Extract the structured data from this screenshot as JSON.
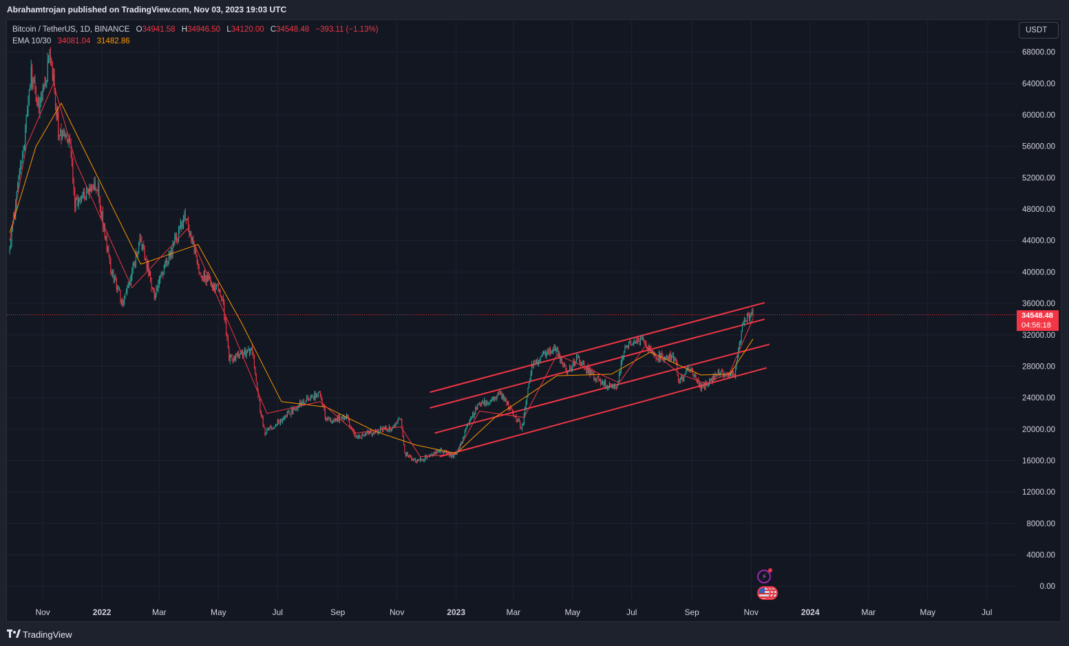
{
  "header": {
    "published_line": "Abrahamtrojan published on TradingView.com, Nov 03, 2023 19:03 UTC"
  },
  "legend": {
    "symbol": "Bitcoin / TetherUS, 1D, BINANCE",
    "open_label": "O",
    "open": "34941.58",
    "high_label": "H",
    "high": "34946.50",
    "low_label": "L",
    "low": "34120.00",
    "close_label": "C",
    "close": "34548.48",
    "change": "−393.11 (−1.13%)",
    "ema_label": "EMA 10/30",
    "ema_fast": "34081.04",
    "ema_slow": "31482.86"
  },
  "currency_button": "USDT",
  "last_price": {
    "price": "34548.48",
    "countdown": "04:56:18"
  },
  "footer": {
    "brand": "TradingView"
  },
  "colors": {
    "background": "#131722",
    "up": "#26a69a",
    "down": "#f23645",
    "ema_fast": "#f23645",
    "ema_slow": "#ff9800",
    "channel": "#f23645",
    "grid": "#1f2330"
  },
  "chart_data": {
    "type": "candlestick",
    "title": "Bitcoin / TetherUS, 1D, BINANCE",
    "x_axis": {
      "type": "date",
      "range": [
        "2021-09-25",
        "2024-07-31"
      ],
      "tick_labels": [
        "Nov",
        "2022",
        "Mar",
        "May",
        "Jul",
        "Sep",
        "Nov",
        "2023",
        "Mar",
        "May",
        "Jul",
        "Sep",
        "Nov",
        "2024",
        "Mar",
        "May",
        "Jul"
      ],
      "tick_dates": [
        "2021-11-01",
        "2022-01-01",
        "2022-03-01",
        "2022-05-01",
        "2022-07-01",
        "2022-09-01",
        "2022-11-01",
        "2023-01-01",
        "2023-03-01",
        "2023-05-01",
        "2023-07-01",
        "2023-09-01",
        "2023-11-01",
        "2024-01-01",
        "2024-03-01",
        "2024-05-01",
        "2024-07-01"
      ]
    },
    "y_axis": {
      "range": [
        -2000,
        72000
      ],
      "ticks": [
        "0.00",
        "4000.00",
        "8000.00",
        "12000.00",
        "16000.00",
        "20000.00",
        "24000.00",
        "28000.00",
        "32000.00",
        "36000.00",
        "40000.00",
        "44000.00",
        "48000.00",
        "52000.00",
        "56000.00",
        "60000.00",
        "64000.00",
        "68000.00"
      ],
      "tick_values": [
        0,
        4000,
        8000,
        12000,
        16000,
        20000,
        24000,
        28000,
        32000,
        36000,
        40000,
        44000,
        48000,
        52000,
        56000,
        60000,
        64000,
        68000
      ]
    },
    "grid": true,
    "price_path": [
      {
        "date": "2021-09-28",
        "close": 42500
      },
      {
        "date": "2021-10-06",
        "close": 51000
      },
      {
        "date": "2021-10-12",
        "close": 56000
      },
      {
        "date": "2021-10-20",
        "close": 65000
      },
      {
        "date": "2021-10-28",
        "close": 61000
      },
      {
        "date": "2021-11-09",
        "close": 67500
      },
      {
        "date": "2021-11-18",
        "close": 57000
      },
      {
        "date": "2021-11-28",
        "close": 57500
      },
      {
        "date": "2021-12-04",
        "close": 49000
      },
      {
        "date": "2021-12-27",
        "close": 51000
      },
      {
        "date": "2022-01-08",
        "close": 41500
      },
      {
        "date": "2022-01-22",
        "close": 36000
      },
      {
        "date": "2022-02-10",
        "close": 44000
      },
      {
        "date": "2022-02-24",
        "close": 37000
      },
      {
        "date": "2022-03-28",
        "close": 47500
      },
      {
        "date": "2022-04-12",
        "close": 40000
      },
      {
        "date": "2022-05-05",
        "close": 37000
      },
      {
        "date": "2022-05-12",
        "close": 29000
      },
      {
        "date": "2022-06-05",
        "close": 30000
      },
      {
        "date": "2022-06-13",
        "close": 22500
      },
      {
        "date": "2022-06-18",
        "close": 19500
      },
      {
        "date": "2022-07-08",
        "close": 21500
      },
      {
        "date": "2022-07-30",
        "close": 23800
      },
      {
        "date": "2022-08-14",
        "close": 24400
      },
      {
        "date": "2022-08-20",
        "close": 21200
      },
      {
        "date": "2022-09-10",
        "close": 21500
      },
      {
        "date": "2022-09-20",
        "close": 19000
      },
      {
        "date": "2022-10-25",
        "close": 20200
      },
      {
        "date": "2022-11-05",
        "close": 21200
      },
      {
        "date": "2022-11-09",
        "close": 17000
      },
      {
        "date": "2022-11-21",
        "close": 15800
      },
      {
        "date": "2022-12-15",
        "close": 17300
      },
      {
        "date": "2022-12-31",
        "close": 16550
      },
      {
        "date": "2023-01-14",
        "close": 20800
      },
      {
        "date": "2023-01-22",
        "close": 22700
      },
      {
        "date": "2023-02-16",
        "close": 24500
      },
      {
        "date": "2023-03-10",
        "close": 20100
      },
      {
        "date": "2023-03-20",
        "close": 28200
      },
      {
        "date": "2023-04-13",
        "close": 30400
      },
      {
        "date": "2023-04-25",
        "close": 27500
      },
      {
        "date": "2023-05-06",
        "close": 29000
      },
      {
        "date": "2023-05-25",
        "close": 26400
      },
      {
        "date": "2023-06-15",
        "close": 25000
      },
      {
        "date": "2023-06-24",
        "close": 30600
      },
      {
        "date": "2023-07-13",
        "close": 31300
      },
      {
        "date": "2023-07-25",
        "close": 29200
      },
      {
        "date": "2023-08-15",
        "close": 29100
      },
      {
        "date": "2023-08-18",
        "close": 26100
      },
      {
        "date": "2023-08-29",
        "close": 27700
      },
      {
        "date": "2023-09-11",
        "close": 25200
      },
      {
        "date": "2023-09-28",
        "close": 27000
      },
      {
        "date": "2023-10-15",
        "close": 27100
      },
      {
        "date": "2023-10-23",
        "close": 33000
      },
      {
        "date": "2023-10-26",
        "close": 34200
      },
      {
        "date": "2023-11-03",
        "close": 34548
      }
    ],
    "ema_fast_series": {
      "label": "EMA 10/30",
      "points": [
        {
          "date": "2021-09-28",
          "value": 44000
        },
        {
          "date": "2021-10-15",
          "value": 56000
        },
        {
          "date": "2021-11-12",
          "value": 64000
        },
        {
          "date": "2021-12-05",
          "value": 54000
        },
        {
          "date": "2022-01-10",
          "value": 44000
        },
        {
          "date": "2022-02-01",
          "value": 38000
        },
        {
          "date": "2022-03-30",
          "value": 45500
        },
        {
          "date": "2022-05-10",
          "value": 34000
        },
        {
          "date": "2022-06-20",
          "value": 22000
        },
        {
          "date": "2022-08-14",
          "value": 23500
        },
        {
          "date": "2022-09-20",
          "value": 19500
        },
        {
          "date": "2022-11-05",
          "value": 20300
        },
        {
          "date": "2022-11-25",
          "value": 16500
        },
        {
          "date": "2023-01-01",
          "value": 16800
        },
        {
          "date": "2023-01-25",
          "value": 22300
        },
        {
          "date": "2023-03-12",
          "value": 21500
        },
        {
          "date": "2023-04-15",
          "value": 29500
        },
        {
          "date": "2023-06-18",
          "value": 25900
        },
        {
          "date": "2023-07-15",
          "value": 30600
        },
        {
          "date": "2023-08-20",
          "value": 27000
        },
        {
          "date": "2023-09-15",
          "value": 25800
        },
        {
          "date": "2023-10-10",
          "value": 27200
        },
        {
          "date": "2023-11-03",
          "value": 34081
        }
      ]
    },
    "ema_slow_series": {
      "label": "EMA 10/30",
      "points": [
        {
          "date": "2021-09-28",
          "value": 45000
        },
        {
          "date": "2021-10-25",
          "value": 56000
        },
        {
          "date": "2021-11-20",
          "value": 61500
        },
        {
          "date": "2022-01-01",
          "value": 51000
        },
        {
          "date": "2022-02-10",
          "value": 41000
        },
        {
          "date": "2022-04-10",
          "value": 43500
        },
        {
          "date": "2022-05-25",
          "value": 33500
        },
        {
          "date": "2022-07-05",
          "value": 23500
        },
        {
          "date": "2022-08-20",
          "value": 22800
        },
        {
          "date": "2022-10-10",
          "value": 19700
        },
        {
          "date": "2022-11-20",
          "value": 18000
        },
        {
          "date": "2023-01-01",
          "value": 16900
        },
        {
          "date": "2023-02-10",
          "value": 21500
        },
        {
          "date": "2023-04-15",
          "value": 26800
        },
        {
          "date": "2023-06-10",
          "value": 27000
        },
        {
          "date": "2023-07-20",
          "value": 29800
        },
        {
          "date": "2023-09-10",
          "value": 26900
        },
        {
          "date": "2023-10-10",
          "value": 27000
        },
        {
          "date": "2023-11-03",
          "value": 31483
        }
      ]
    },
    "channel_lines": [
      {
        "start": {
          "date": "2022-12-05",
          "value": 24700
        },
        "end": {
          "date": "2023-11-15",
          "value": 36100
        }
      },
      {
        "start": {
          "date": "2022-12-05",
          "value": 22700
        },
        "end": {
          "date": "2023-11-15",
          "value": 34000
        }
      },
      {
        "start": {
          "date": "2022-12-10",
          "value": 19500
        },
        "end": {
          "date": "2023-11-20",
          "value": 30800
        }
      },
      {
        "start": {
          "date": "2022-12-15",
          "value": 16500
        },
        "end": {
          "date": "2023-11-17",
          "value": 27800
        }
      }
    ],
    "last_price_line": 34548.48,
    "legend_placement": "top-left"
  }
}
